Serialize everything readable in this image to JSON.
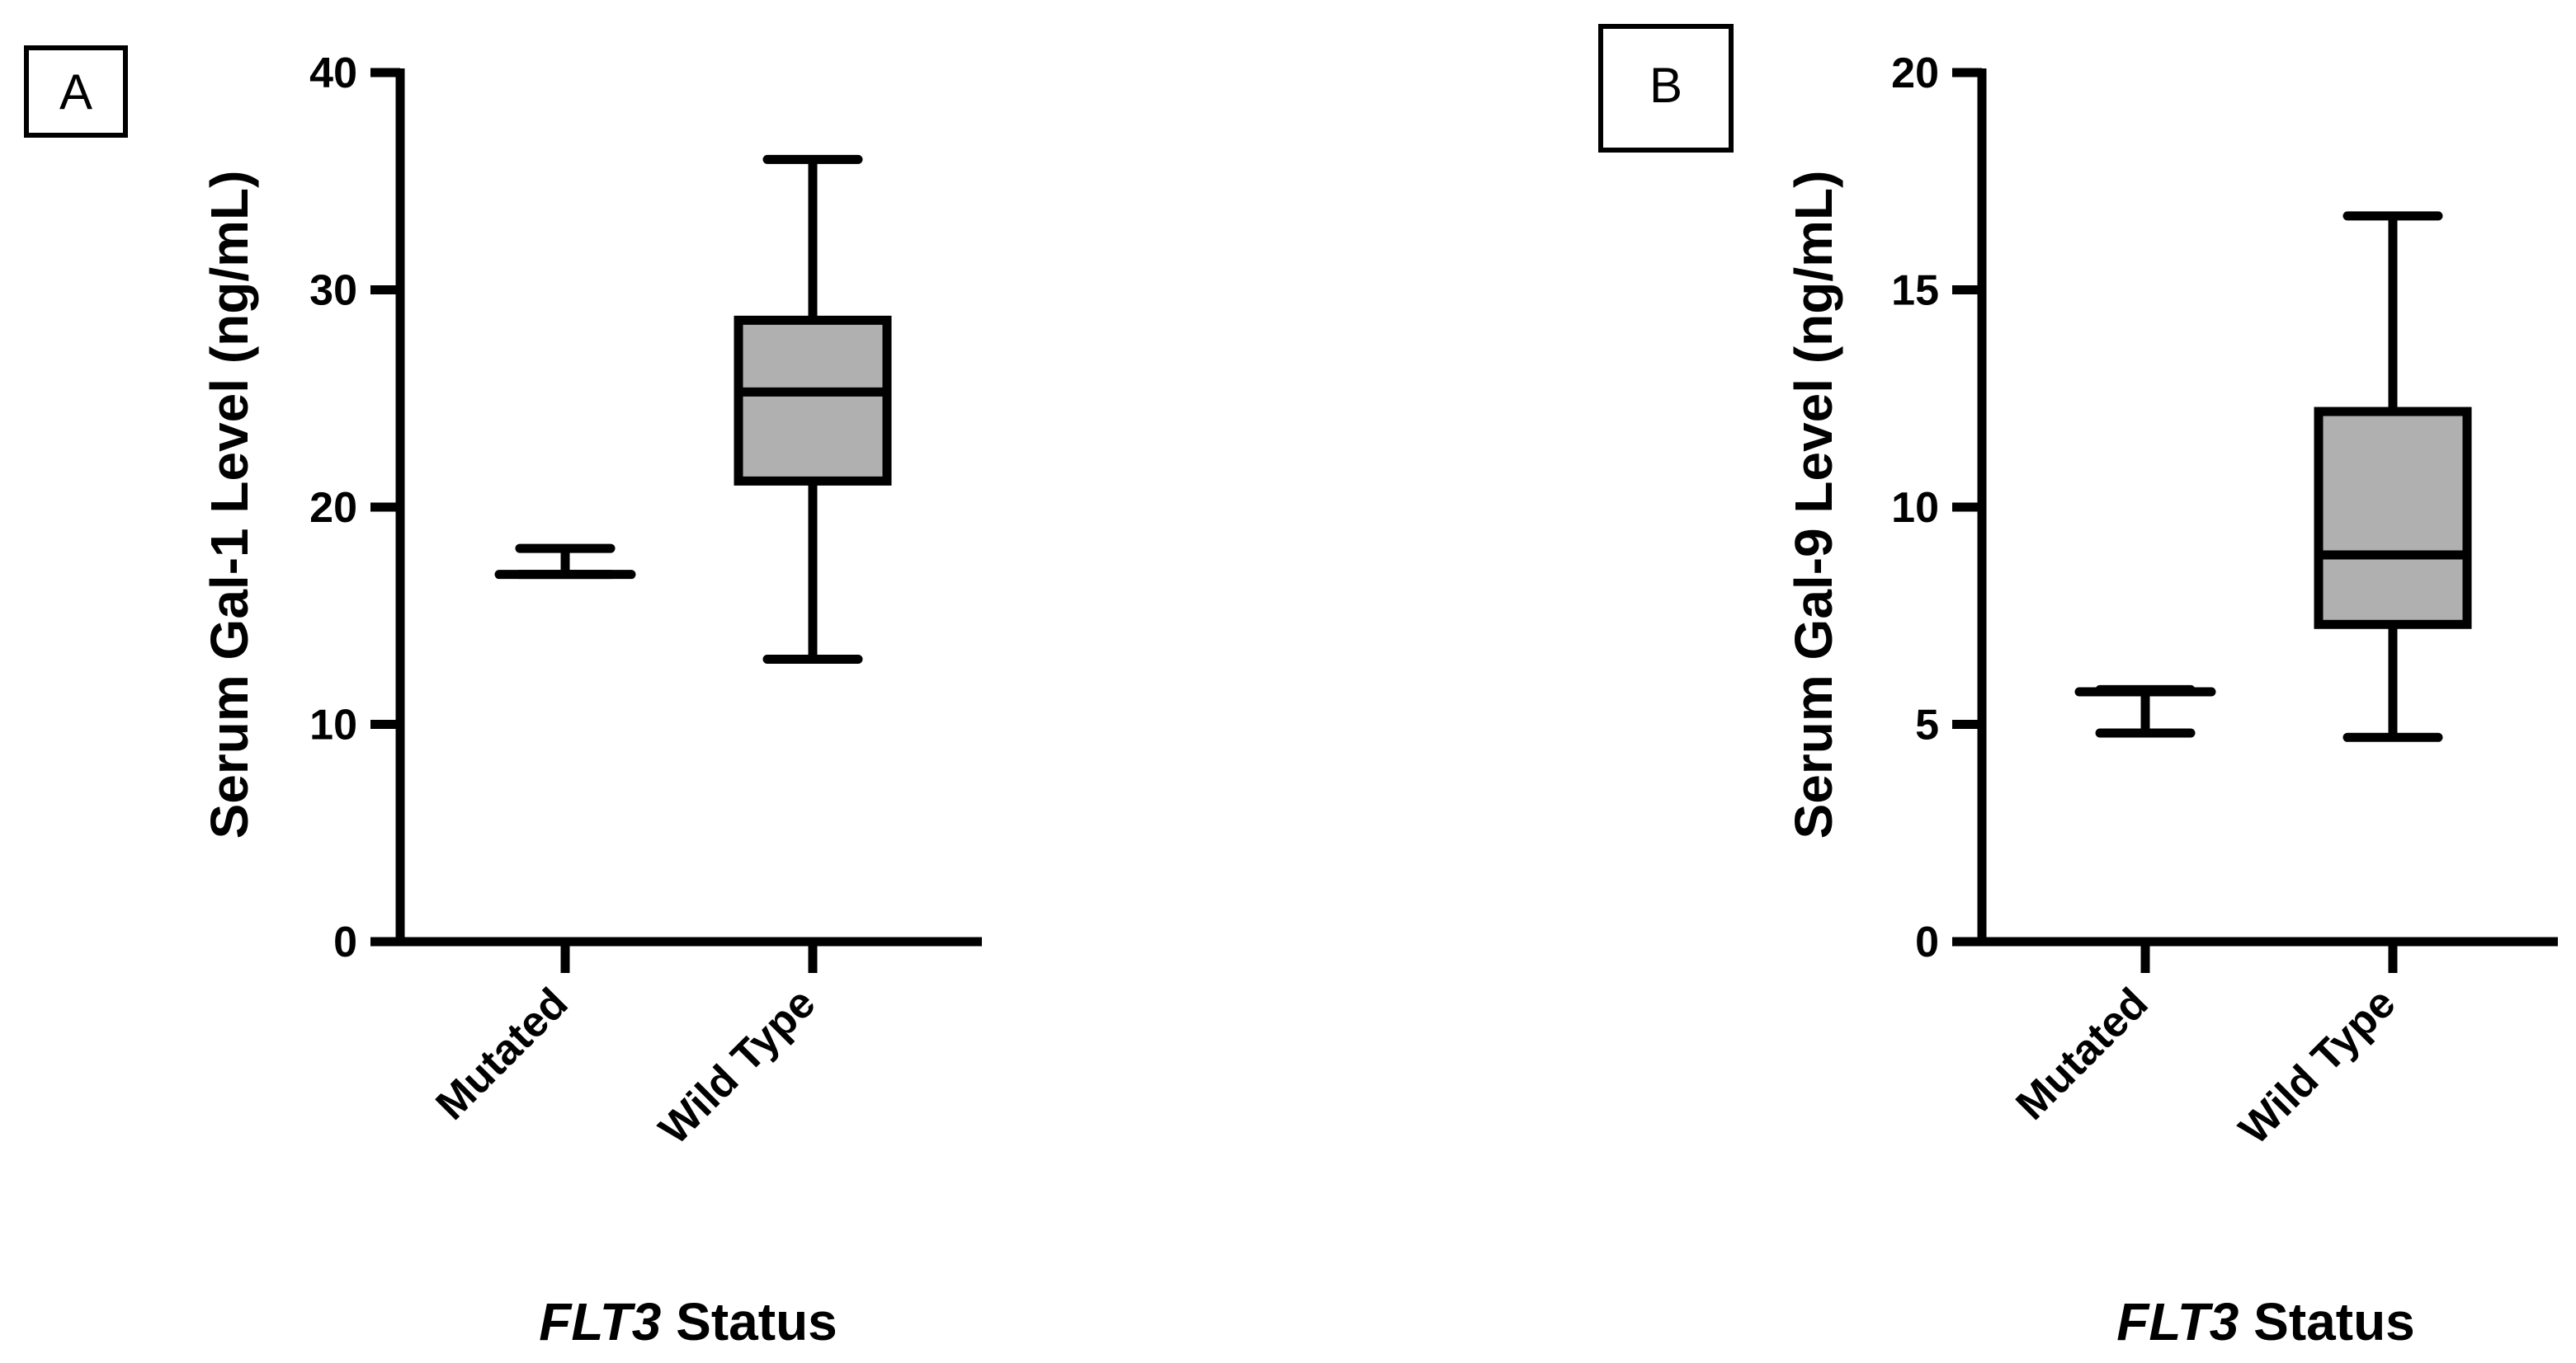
{
  "chart_data": [
    {
      "type": "box",
      "panel_label": "A",
      "title": "",
      "ylabel": "Serum Gal-1 Level (ng/mL)",
      "xlabel_italic": "FLT3",
      "xlabel_rest": " Status",
      "ylim": [
        0,
        40
      ],
      "yticks": [
        0,
        10,
        20,
        30,
        40
      ],
      "categories": [
        "Mutated",
        "Wild Type"
      ],
      "box_color": "#b0b0b0",
      "boxes": [
        {
          "category": "Mutated",
          "min": 16.9,
          "q1": 16.9,
          "median": 16.9,
          "q3": 16.9,
          "max": 18.1
        },
        {
          "category": "Wild Type",
          "min": 13.0,
          "q1": 21.2,
          "median": 25.3,
          "q3": 28.6,
          "max": 36.0
        }
      ]
    },
    {
      "type": "box",
      "panel_label": "B",
      "title": "",
      "ylabel": "Serum Gal-9 Level (ng/mL)",
      "xlabel_italic": "FLT3",
      "xlabel_rest": " Status",
      "ylim": [
        0,
        20
      ],
      "yticks": [
        0,
        5,
        10,
        15,
        20
      ],
      "categories": [
        "Mutated",
        "Wild Type"
      ],
      "box_color": "#b0b0b0",
      "boxes": [
        {
          "category": "Mutated",
          "min": 4.8,
          "q1": 5.75,
          "median": 5.75,
          "q3": 5.75,
          "max": 5.8
        },
        {
          "category": "Wild Type",
          "min": 4.7,
          "q1": 7.3,
          "median": 8.9,
          "q3": 12.2,
          "max": 16.7
        }
      ]
    }
  ]
}
